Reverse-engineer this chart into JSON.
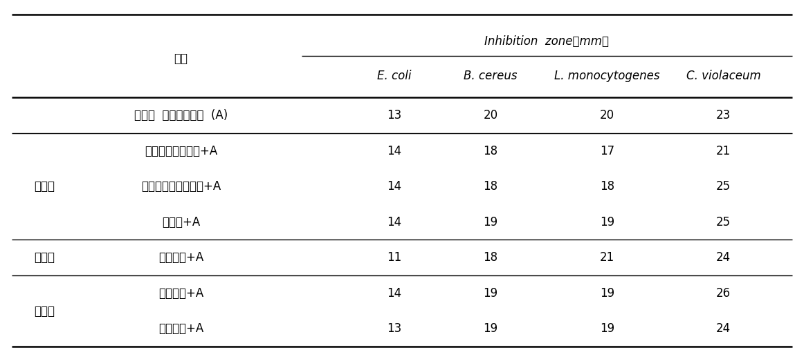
{
  "col_header_left": "성분",
  "inhibition_header": "Inhibition  zone（mm）",
  "col_headers": [
    "E. coli",
    "B. cereus",
    "L. monocytogenes",
    "C. violaceum"
  ],
  "subgroups": [
    "개발된  항균복합소재  (A)",
    "네취럴셀룰로오즈+A",
    "수용성감초추출분말+A",
    "솔비톨+A",
    "뉴트럴티+A",
    "폴리쿠터+A",
    "전분호액+A"
  ],
  "groups": [
    {
      "label": "",
      "rows": [
        0
      ]
    },
    {
      "label": "부형제",
      "rows": [
        1,
        2,
        3
      ]
    },
    {
      "label": "중화제",
      "rows": [
        4
      ]
    },
    {
      "label": "결합제",
      "rows": [
        5,
        6
      ]
    }
  ],
  "values": [
    [
      13,
      20,
      20,
      23
    ],
    [
      14,
      18,
      17,
      21
    ],
    [
      14,
      18,
      18,
      25
    ],
    [
      14,
      19,
      19,
      25
    ],
    [
      11,
      18,
      21,
      24
    ],
    [
      14,
      19,
      19,
      26
    ],
    [
      13,
      19,
      19,
      24
    ]
  ],
  "separator_after_rows": [
    0,
    3,
    4
  ],
  "font_size": 12,
  "font_size_header": 12
}
